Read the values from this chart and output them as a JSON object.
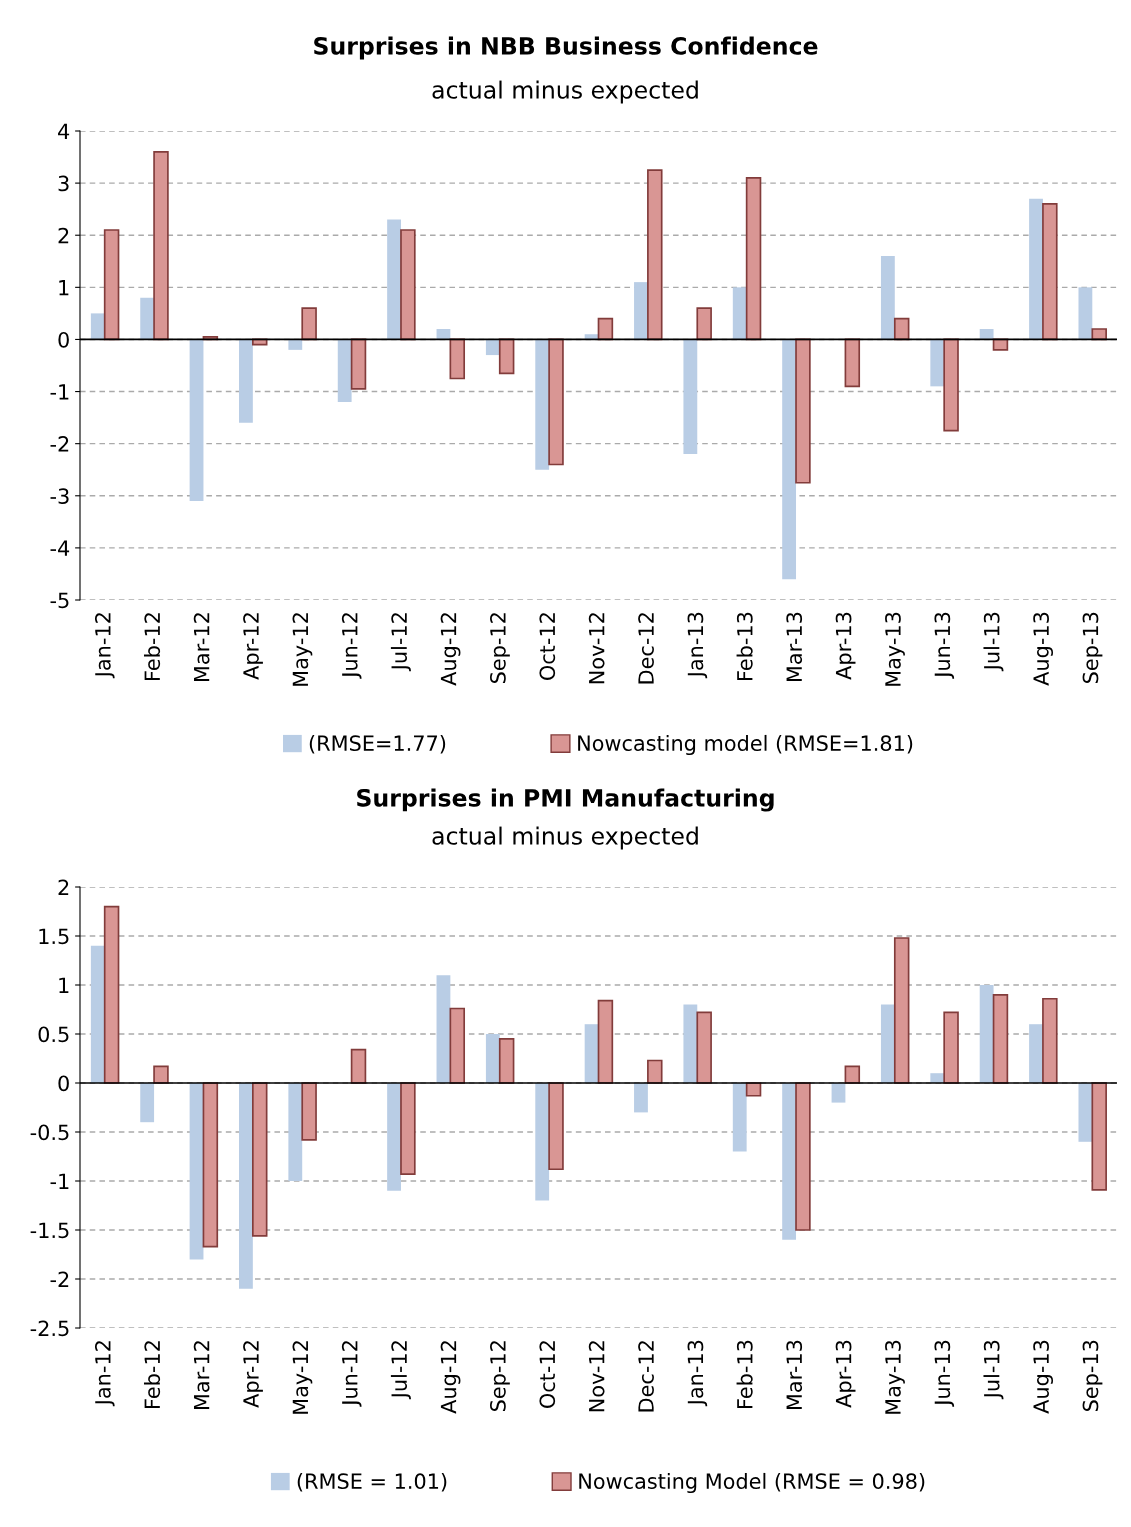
{
  "chart_data": [
    {
      "type": "bar",
      "title": "Surprises in NBB Business Confidence",
      "subtitle": "actual minus expected",
      "categories": [
        "Jan-12",
        "Feb-12",
        "Mar-12",
        "Apr-12",
        "May-12",
        "Jun-12",
        "Jul-12",
        "Aug-12",
        "Sep-12",
        "Oct-12",
        "Nov-12",
        "Dec-12",
        "Jan-13",
        "Feb-13",
        "Mar-13",
        "Apr-13",
        "May-13",
        "Jun-13",
        "Jul-13",
        "Aug-13",
        "Sep-13"
      ],
      "series": [
        {
          "name": "(RMSE=1.77)",
          "color": "#b9cde5",
          "values": [
            0.5,
            0.8,
            -3.1,
            -1.6,
            -0.2,
            -1.2,
            2.3,
            0.2,
            -0.3,
            -2.5,
            0.1,
            1.1,
            -2.2,
            1.0,
            -4.6,
            0,
            1.6,
            -0.9,
            0.2,
            2.7,
            1.0
          ]
        },
        {
          "name": "Nowcasting model (RMSE=1.81)",
          "color": "#d99694",
          "values": [
            2.1,
            3.6,
            0.05,
            -0.1,
            0.6,
            -0.95,
            2.1,
            -0.75,
            -0.65,
            -2.4,
            0.4,
            3.25,
            0.6,
            3.1,
            -2.75,
            -0.9,
            0.4,
            -1.75,
            -0.2,
            2.6,
            0.2
          ]
        }
      ],
      "ylim": [
        -5,
        4
      ],
      "yticks": [
        -5,
        -4,
        -3,
        -2,
        -1,
        0,
        1,
        2,
        3,
        4
      ],
      "grid": "y",
      "legend": "bottom"
    },
    {
      "type": "bar",
      "title": "Surprises in PMI Manufacturing",
      "subtitle": "actual minus expected",
      "categories": [
        "Jan-12",
        "Feb-12",
        "Mar-12",
        "Apr-12",
        "May-12",
        "Jun-12",
        "Jul-12",
        "Aug-12",
        "Sep-12",
        "Oct-12",
        "Nov-12",
        "Dec-12",
        "Jan-13",
        "Feb-13",
        "Mar-13",
        "Apr-13",
        "May-13",
        "Jun-13",
        "Jul-13",
        "Aug-13",
        "Sep-13"
      ],
      "series": [
        {
          "name": "(RMSE = 1.01)",
          "color": "#b9cde5",
          "values": [
            1.4,
            -0.4,
            -1.8,
            -2.1,
            -1.0,
            0,
            -1.1,
            1.1,
            0.5,
            -1.2,
            0.6,
            -0.3,
            0.8,
            -0.7,
            -1.6,
            -0.2,
            0.8,
            0.1,
            1.0,
            0.6,
            -0.6
          ]
        },
        {
          "name": "Nowcasting Model (RMSE = 0.98)",
          "color": "#d99694",
          "values": [
            1.8,
            0.17,
            -1.67,
            -1.56,
            -0.58,
            0.34,
            -0.93,
            0.76,
            0.45,
            -0.88,
            0.84,
            0.23,
            0.72,
            -0.13,
            -1.5,
            0.17,
            1.48,
            0.72,
            0.9,
            0.86,
            -1.09
          ]
        }
      ],
      "ylim": [
        -2.5,
        2
      ],
      "yticks": [
        -2.5,
        -2,
        -1.5,
        -1,
        -0.5,
        0,
        0.5,
        1,
        1.5,
        2
      ],
      "grid": "y",
      "legend": "bottom"
    }
  ]
}
